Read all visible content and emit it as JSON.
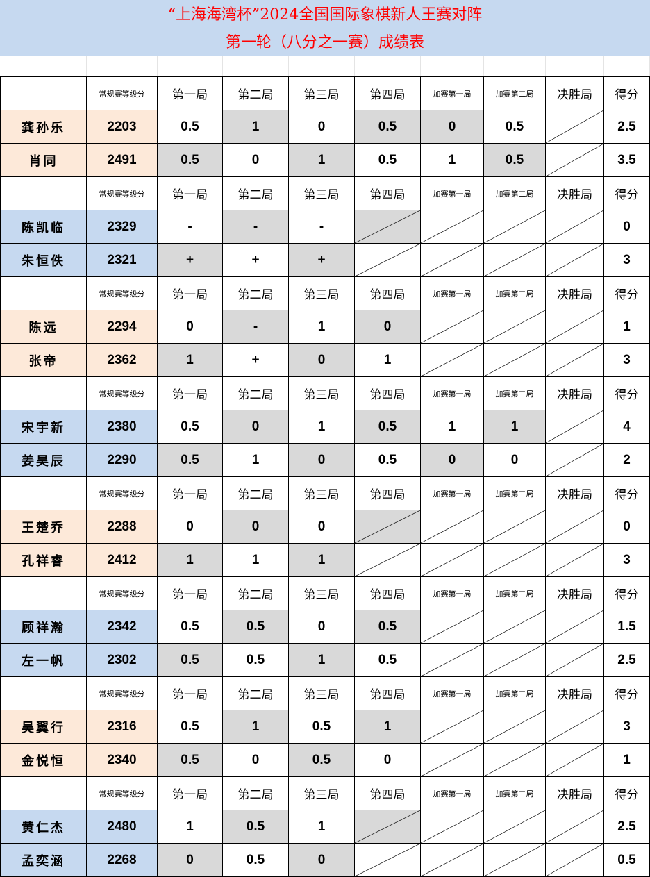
{
  "title": {
    "line1": "“上海海湾杯”2024全国国际象棋新人王赛对阵",
    "line2": "第一轮（八分之一赛）成绩表"
  },
  "header": [
    "",
    "常规赛等级分",
    "第一局",
    "第二局",
    "第三局",
    "第四局",
    "加赛第一局",
    "加赛第二局",
    "决胜局",
    "得分"
  ],
  "colors": {
    "title_bg": "#c6d9f0",
    "title_text": "#ff0000",
    "peach": "#fde9d9",
    "blue": "#c6d9f0",
    "shaded": "#d9d9d9"
  },
  "legend_note": "/ = diagonal (not played)",
  "matches": [
    {
      "color": "peach",
      "players": [
        {
          "name": "龚孙乐",
          "rating": "2203",
          "games": [
            "0.5",
            "1",
            "0",
            "0.5",
            "0",
            "0.5",
            "/"
          ],
          "shaded": [
            1,
            3,
            4
          ],
          "score": "2.5"
        },
        {
          "name": "肖同",
          "rating": "2491",
          "games": [
            "0.5",
            "0",
            "1",
            "0.5",
            "1",
            "0.5",
            "/"
          ],
          "shaded": [
            0,
            2,
            5
          ],
          "score": "3.5"
        }
      ]
    },
    {
      "color": "blue",
      "players": [
        {
          "name": "陈凯临",
          "rating": "2329",
          "games": [
            "-",
            "-",
            "-",
            "/",
            "/",
            "/",
            "/"
          ],
          "shaded": [
            1,
            3
          ],
          "score": "0"
        },
        {
          "name": "朱恒佚",
          "rating": "2321",
          "games": [
            "+",
            "+",
            "+",
            "/",
            "/",
            "/",
            "/"
          ],
          "shaded": [
            0,
            2
          ],
          "score": "3"
        }
      ]
    },
    {
      "color": "peach",
      "players": [
        {
          "name": "陈远",
          "rating": "2294",
          "games": [
            "0",
            "-",
            "1",
            "0",
            "/",
            "/",
            "/"
          ],
          "shaded": [
            1,
            3
          ],
          "score": "1"
        },
        {
          "name": "张帝",
          "rating": "2362",
          "games": [
            "1",
            "+",
            "0",
            "1",
            "/",
            "/",
            "/"
          ],
          "shaded": [
            0,
            2
          ],
          "score": "3"
        }
      ]
    },
    {
      "color": "blue",
      "players": [
        {
          "name": "宋宇新",
          "rating": "2380",
          "games": [
            "0.5",
            "0",
            "1",
            "0.5",
            "1",
            "1",
            "/"
          ],
          "shaded": [
            1,
            3,
            5
          ],
          "score": "4"
        },
        {
          "name": "姜昊辰",
          "rating": "2290",
          "games": [
            "0.5",
            "1",
            "0",
            "0.5",
            "0",
            "0",
            "/"
          ],
          "shaded": [
            0,
            2,
            4
          ],
          "score": "2"
        }
      ]
    },
    {
      "color": "peach",
      "players": [
        {
          "name": "王楚乔",
          "rating": "2288",
          "games": [
            "0",
            "0",
            "0",
            "/",
            "/",
            "/",
            "/"
          ],
          "shaded": [
            1,
            3
          ],
          "score": "0"
        },
        {
          "name": "孔祥睿",
          "rating": "2412",
          "games": [
            "1",
            "1",
            "1",
            "/",
            "/",
            "/",
            "/"
          ],
          "shaded": [
            0,
            2
          ],
          "score": "3"
        }
      ]
    },
    {
      "color": "blue",
      "players": [
        {
          "name": "顾祥瀚",
          "rating": "2342",
          "games": [
            "0.5",
            "0.5",
            "0",
            "0.5",
            "/",
            "/",
            "/"
          ],
          "shaded": [
            1,
            3
          ],
          "score": "1.5"
        },
        {
          "name": "左一帆",
          "rating": "2302",
          "games": [
            "0.5",
            "0.5",
            "1",
            "0.5",
            "/",
            "/",
            "/"
          ],
          "shaded": [
            0,
            2
          ],
          "score": "2.5"
        }
      ]
    },
    {
      "color": "peach",
      "players": [
        {
          "name": "吴翼行",
          "rating": "2316",
          "games": [
            "0.5",
            "1",
            "0.5",
            "1",
            "/",
            "/",
            "/"
          ],
          "shaded": [
            1,
            3
          ],
          "score": "3"
        },
        {
          "name": "金悦恒",
          "rating": "2340",
          "games": [
            "0.5",
            "0",
            "0.5",
            "0",
            "/",
            "/",
            "/"
          ],
          "shaded": [
            0,
            2
          ],
          "score": "1"
        }
      ]
    },
    {
      "color": "blue",
      "players": [
        {
          "name": "黄仁杰",
          "rating": "2480",
          "games": [
            "1",
            "0.5",
            "1",
            "/",
            "/",
            "/",
            "/"
          ],
          "shaded": [
            1,
            3
          ],
          "score": "2.5"
        },
        {
          "name": "孟奕涵",
          "rating": "2268",
          "games": [
            "0",
            "0.5",
            "0",
            "/",
            "/",
            "/",
            "/"
          ],
          "shaded": [
            0,
            2
          ],
          "score": "0.5"
        }
      ]
    }
  ]
}
